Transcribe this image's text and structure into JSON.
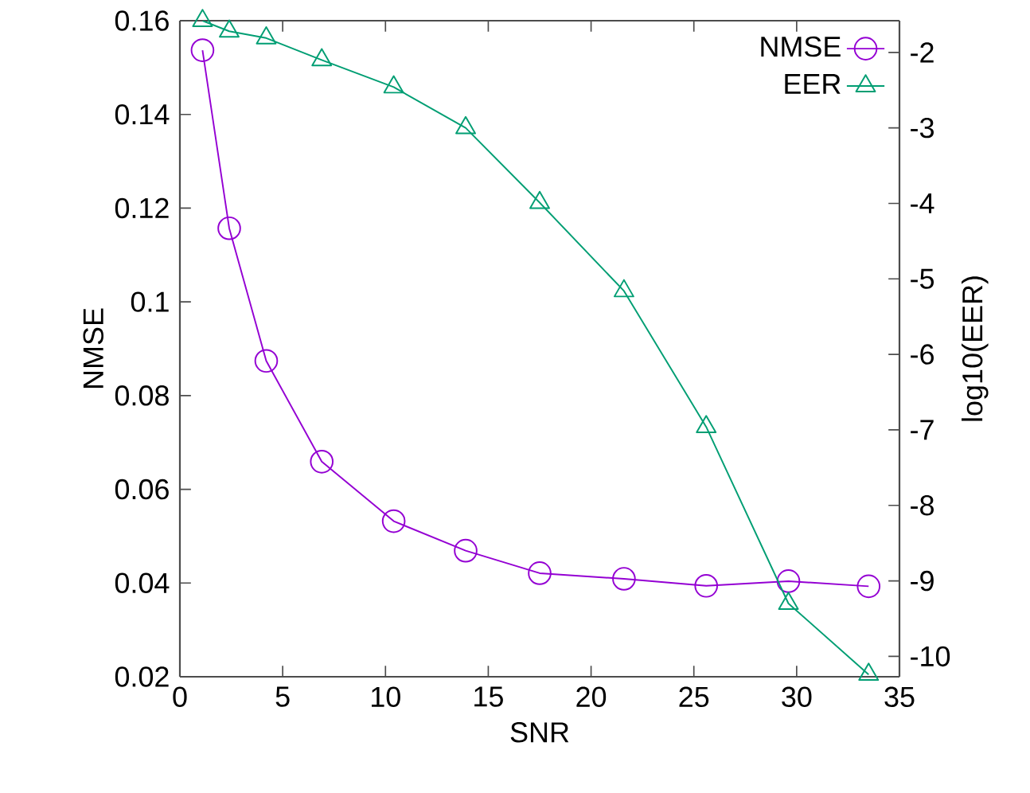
{
  "chart_data": {
    "type": "line",
    "xlabel": "SNR",
    "ylabel": "NMSE",
    "y2label": "log10(EER)",
    "x": [
      1.1,
      2.4,
      4.2,
      6.9,
      10.4,
      13.9,
      17.5,
      21.6,
      25.6,
      29.6,
      33.5
    ],
    "series": [
      {
        "name": "NMSE",
        "color": "#9400d3",
        "marker": "circle",
        "values": [
          0.1537,
          0.1157,
          0.0874,
          0.0659,
          0.0532,
          0.0469,
          0.0421,
          0.0409,
          0.0394,
          0.0404,
          0.0393
        ]
      },
      {
        "name": "EER",
        "color": "#009e73",
        "marker": "triangle",
        "axis": "y2",
        "values": [
          -1.58,
          -1.72,
          -1.81,
          -2.1,
          -2.46,
          -3.0,
          -3.99,
          -5.16,
          -6.96,
          -9.3,
          -10.24
        ]
      }
    ],
    "xlim": [
      0,
      35
    ],
    "xticks": [
      0,
      5,
      10,
      15,
      20,
      25,
      30,
      35
    ],
    "ylim": [
      0.02,
      0.16
    ],
    "yticks": [
      0.02,
      0.04,
      0.06,
      0.08,
      0.1,
      0.12,
      0.14,
      0.16
    ],
    "y2lim": [
      -10.27,
      -1.58
    ],
    "y2ticks": [
      -10,
      -9,
      -8,
      -7,
      -6,
      -5,
      -4,
      -3,
      -2
    ],
    "legend": "top right",
    "grid": false,
    "line_style": "solid"
  }
}
